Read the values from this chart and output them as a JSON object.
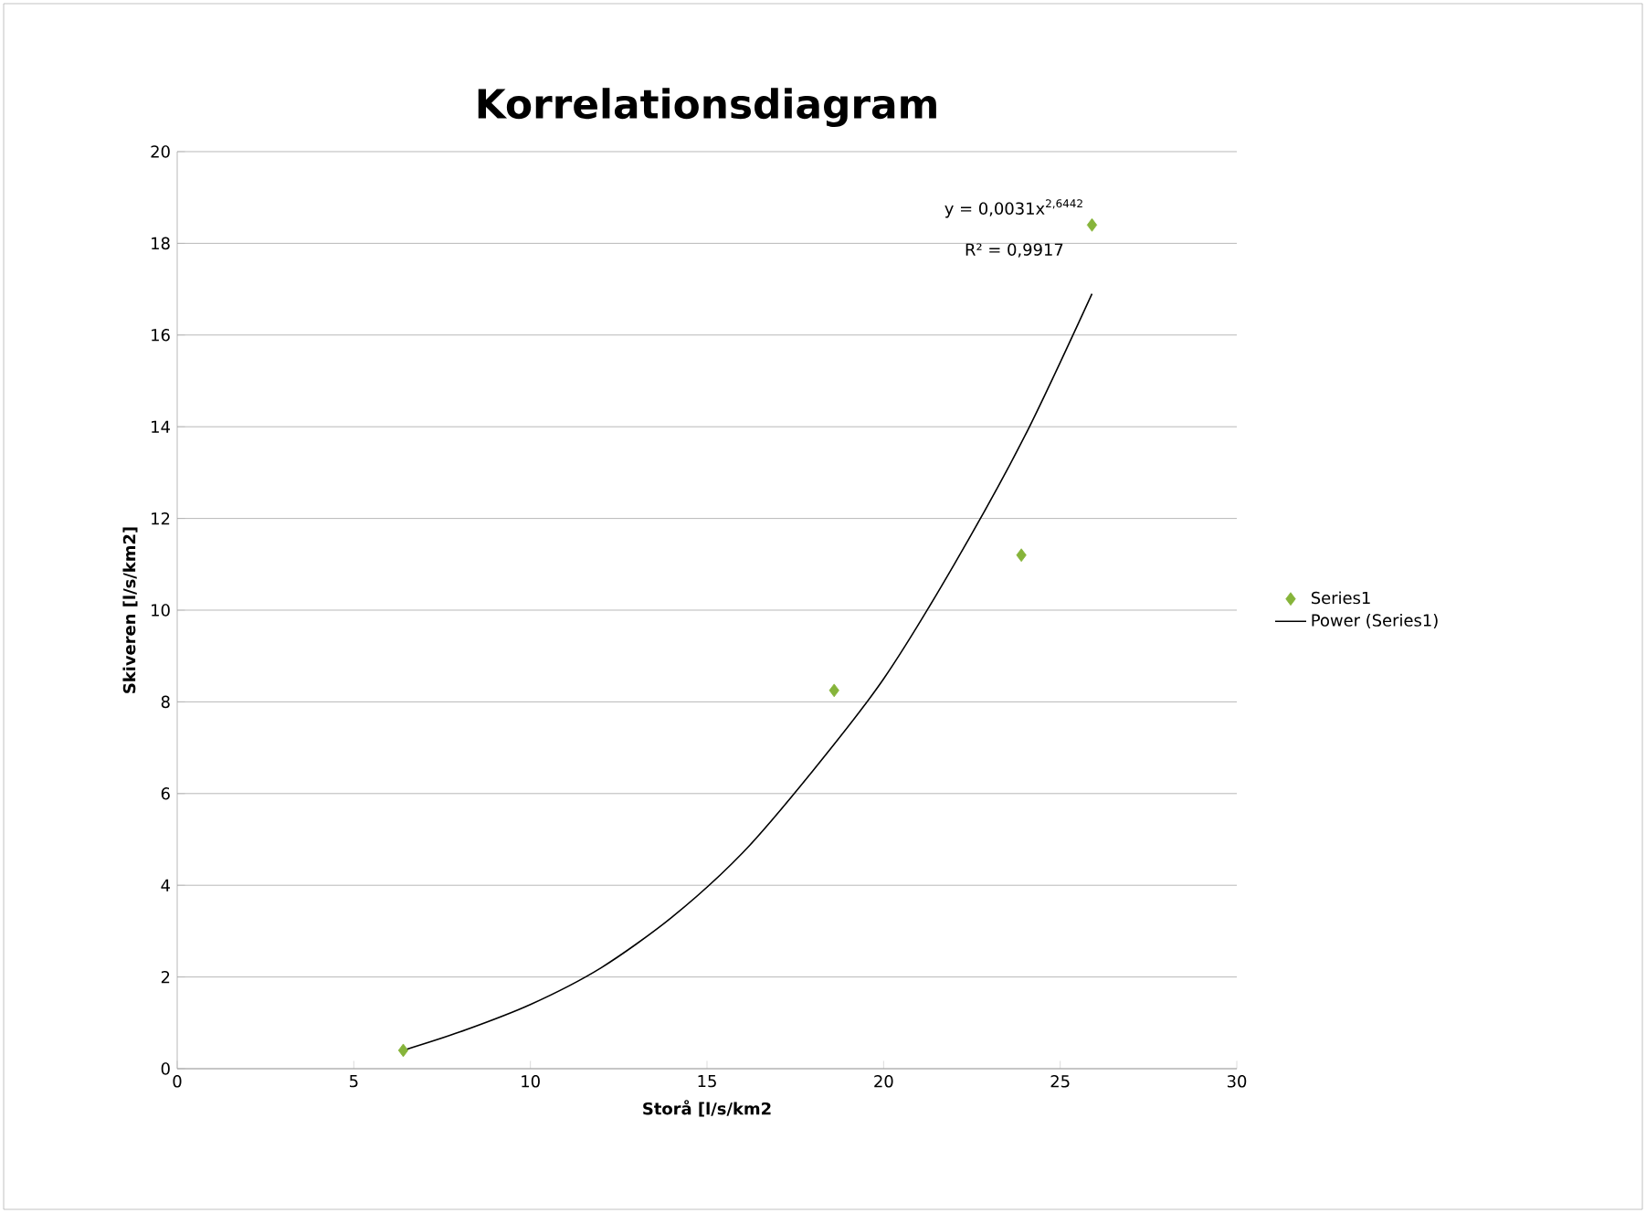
{
  "chart_data": {
    "type": "scatter",
    "title": "Korrelationsdiagram",
    "xlabel": "Storå [l/s/km2",
    "ylabel": "Skiveren  [l/s/km2]",
    "xlim": [
      0,
      30
    ],
    "xticks": [
      0,
      5,
      10,
      15,
      20,
      25,
      30
    ],
    "ylim": [
      0,
      20
    ],
    "yticks": [
      0,
      2,
      4,
      6,
      8,
      10,
      12,
      14,
      16,
      18,
      20
    ],
    "grid": "y",
    "legend": "right",
    "annotations": [
      "y = 0,0031x$^{2,6442}$",
      "R² = 0,9917"
    ],
    "series": [
      {
        "name": "Series1",
        "color": "#86b43a",
        "marker": "diamond",
        "x": [
          6.4,
          18.6,
          23.9,
          25.9
        ],
        "values": [
          0.4,
          8.25,
          11.2,
          18.4
        ]
      },
      {
        "name": "Power (Series1)",
        "type": "line",
        "color": "#000000",
        "marker": "none",
        "line_style": "solid",
        "x": [
          6.4,
          8,
          10,
          12,
          14,
          16,
          18,
          20,
          22,
          24,
          25.9
        ],
        "values": [
          0.4,
          0.8,
          1.4,
          2.2,
          3.3,
          4.7,
          6.5,
          8.5,
          11.0,
          13.8,
          16.9
        ]
      }
    ]
  }
}
